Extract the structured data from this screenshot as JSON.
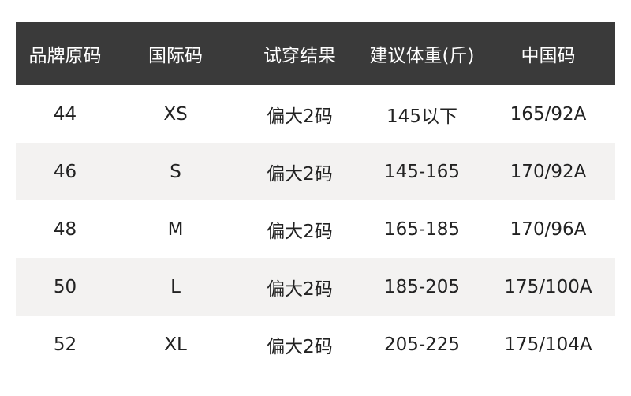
{
  "table": {
    "header": [
      "品牌原码",
      "国际码",
      "试穿结果",
      "建议体重(斤)",
      "中国码"
    ],
    "rows": [
      [
        "44",
        "XS",
        "偏大2码",
        "145以下",
        "165/92A"
      ],
      [
        "46",
        "S",
        "偏大2码",
        "145-165",
        "170/92A"
      ],
      [
        "48",
        "M",
        "偏大2码",
        "165-185",
        "170/96A"
      ],
      [
        "50",
        "L",
        "偏大2码",
        "185-205",
        "175/100A"
      ],
      [
        "52",
        "XL",
        "偏大2码",
        "205-225",
        "175/104A"
      ]
    ]
  }
}
